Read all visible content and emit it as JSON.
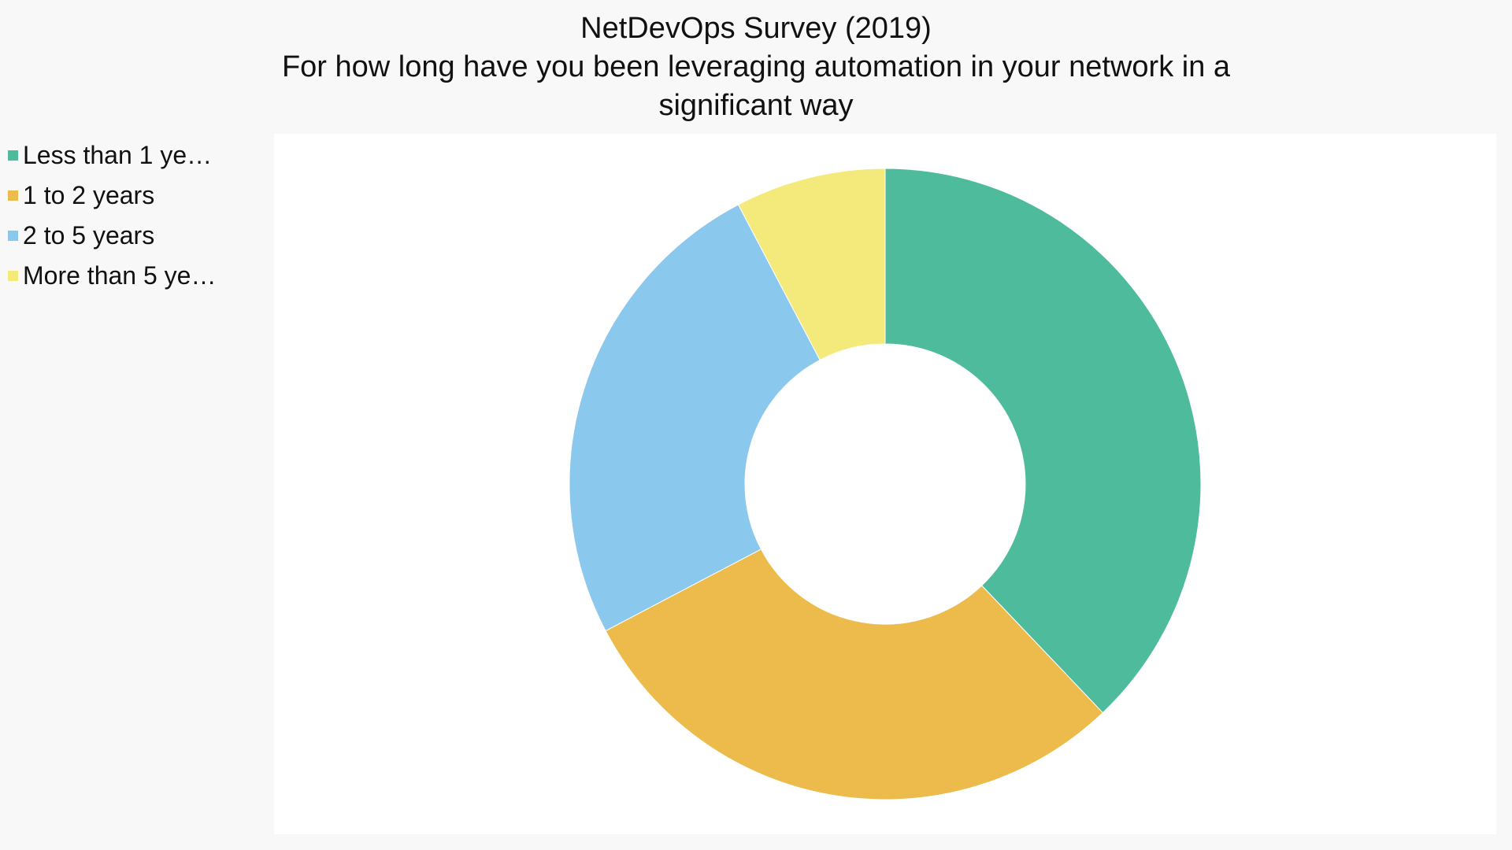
{
  "chart_data": {
    "type": "pie",
    "variant": "donut",
    "title": "NetDevOps Survey (2019)",
    "subtitle": [
      "For how long have you been leveraging automation in your network in a",
      "significant way"
    ],
    "categories": [
      "Less than 1 ye…",
      "1 to 2 years",
      "2 to 5 years",
      "More than 5 ye…"
    ],
    "values": [
      37.9,
      29.4,
      25.0,
      7.7
    ],
    "colors": [
      "#4dbb9c",
      "#ecbb4b",
      "#8bc8ee",
      "#f4ea7b"
    ],
    "legend": "left",
    "start_angle": "top",
    "direction": "clockwise"
  }
}
